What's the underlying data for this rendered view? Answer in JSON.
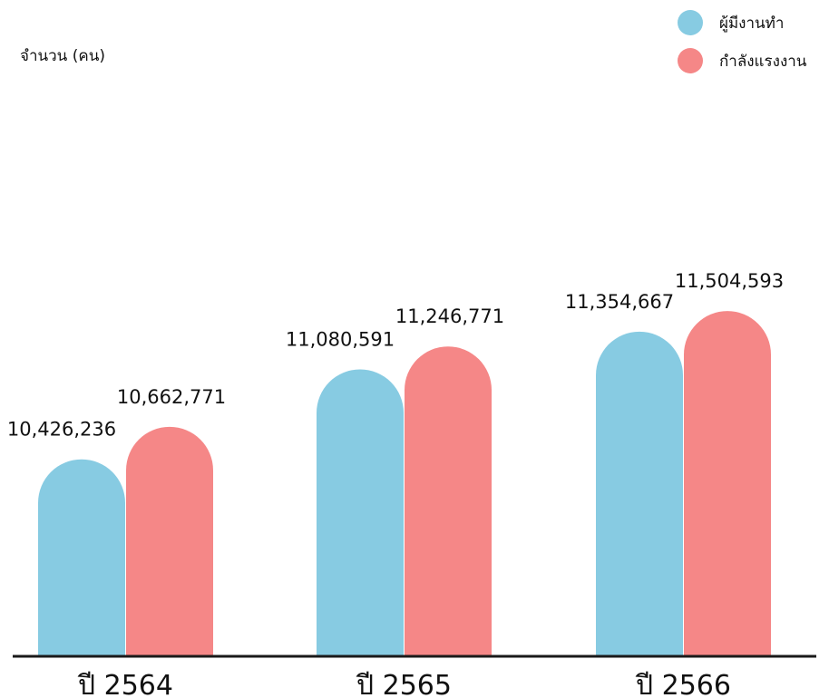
{
  "chart_data": {
    "type": "bar",
    "ylabel": "จำนวน (คน)",
    "legend_position": "top-right",
    "grid": false,
    "ylim": [
      9000000,
      12000000
    ],
    "categories": [
      "ปี 2564",
      "ปี 2565",
      "ปี 2566"
    ],
    "series": [
      {
        "name": "ผู้มีงานทำ",
        "color": "#87CBE2",
        "values": [
          10426236,
          11080591,
          11354667
        ],
        "labels": [
          "10,426,236",
          "11,080,591",
          "11,354,667"
        ]
      },
      {
        "name": "กำลังแรงงาน",
        "color": "#F58787",
        "values": [
          10662771,
          11246771,
          11504593
        ],
        "labels": [
          "10,662,771",
          "11,246,771",
          "11,504,593"
        ]
      }
    ]
  }
}
